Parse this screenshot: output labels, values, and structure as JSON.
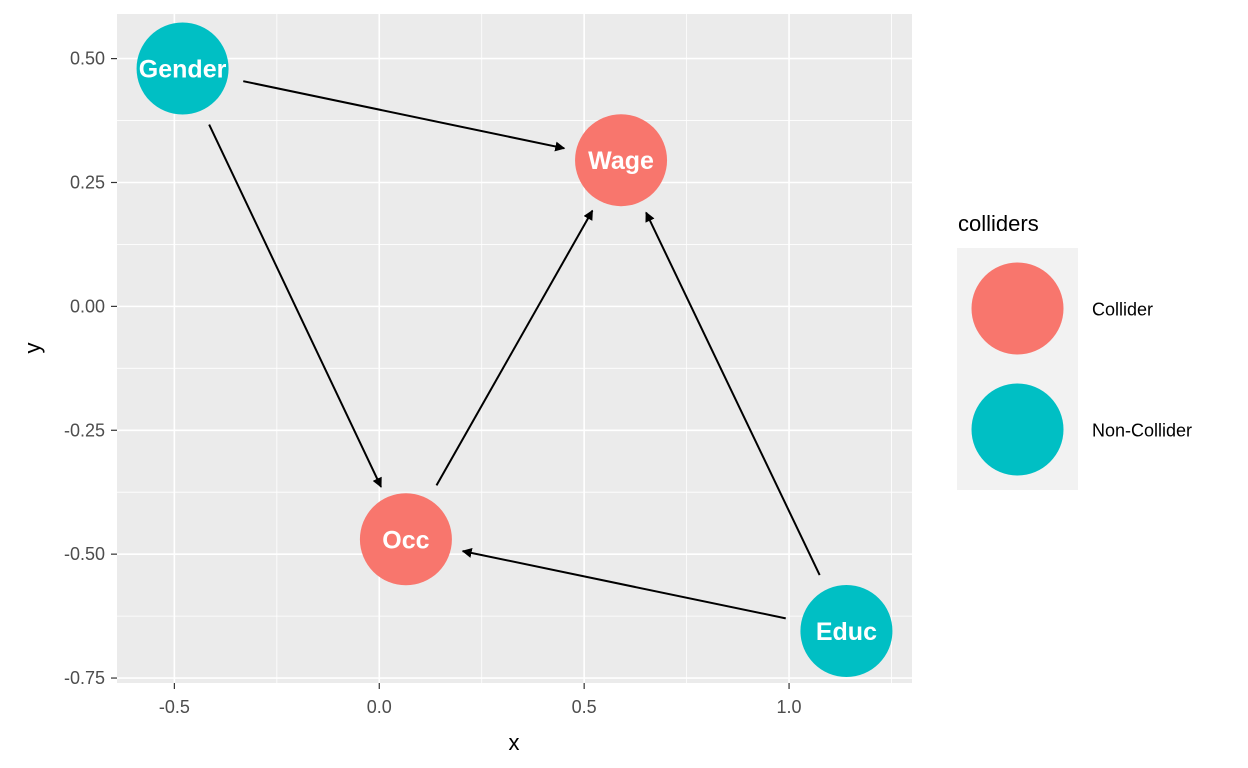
{
  "chart_data": {
    "type": "scatter",
    "title": "",
    "xlabel": "x",
    "ylabel": "y",
    "xlim": [
      -0.64,
      1.3
    ],
    "ylim": [
      -0.76,
      0.59
    ],
    "x_ticks": [
      -0.5,
      0.0,
      0.5,
      1.0
    ],
    "x_tick_labels": [
      "-0.5",
      "0.0",
      "0.5",
      "1.0"
    ],
    "y_ticks": [
      0.5,
      0.25,
      0.0,
      -0.25,
      -0.5,
      -0.75
    ],
    "y_tick_labels": [
      "0.50",
      "0.25",
      "0.00",
      "-0.25",
      "-0.50",
      "-0.75"
    ],
    "grid": true,
    "nodes": [
      {
        "name": "Gender",
        "x": -0.48,
        "y": 0.48,
        "group": "Non-Collider"
      },
      {
        "name": "Wage",
        "x": 0.59,
        "y": 0.295,
        "group": "Collider"
      },
      {
        "name": "Occ",
        "x": 0.065,
        "y": -0.47,
        "group": "Collider"
      },
      {
        "name": "Educ",
        "x": 1.14,
        "y": -0.655,
        "group": "Non-Collider"
      }
    ],
    "edges": [
      {
        "from": "Gender",
        "to": "Wage"
      },
      {
        "from": "Gender",
        "to": "Occ"
      },
      {
        "from": "Occ",
        "to": "Wage"
      },
      {
        "from": "Educ",
        "to": "Wage"
      },
      {
        "from": "Educ",
        "to": "Occ"
      }
    ],
    "legend": {
      "title": "colliders",
      "placement": "right",
      "entries": [
        {
          "label": "Collider",
          "color": "#f8766d"
        },
        {
          "label": "Non-Collider",
          "color": "#00bfc4"
        }
      ]
    }
  },
  "colors": {
    "panel_background": "#ebebeb",
    "grid_major": "#ffffff",
    "collider": "#f8766d",
    "non_collider": "#00bfc4",
    "legend_key_background": "#f2f2f2"
  }
}
